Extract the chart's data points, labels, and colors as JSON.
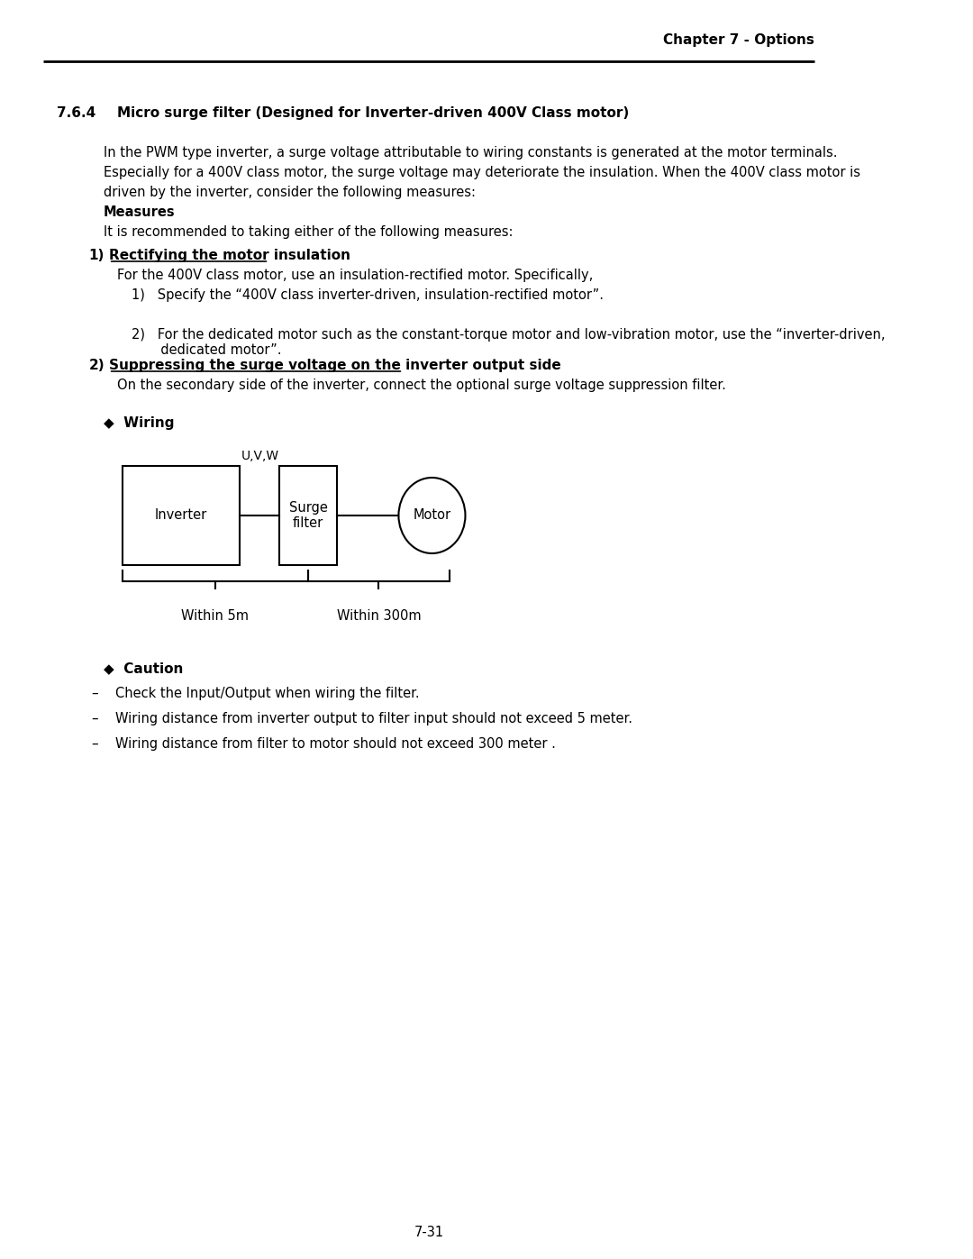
{
  "page_header": "Chapter 7 - Options",
  "section": "7.6.4",
  "section_title": "Micro surge filter (Designed for Inverter-driven 400V Class motor)",
  "body_text": [
    "In the PWM type inverter, a surge voltage attributable to wiring constants is generated at the motor terminals.",
    "Especially for a 400V class motor, the surge voltage may deteriorate the insulation. When the 400V class motor is",
    "driven by the inverter, consider the following measures:",
    "Measures",
    "It is recommended to taking either of the following measures:"
  ],
  "item1_label": "1)",
  "item1_title": "Rectifying the motor insulation",
  "item1_body": "For the 400V class motor, use an insulation-rectified motor. Specifically,",
  "item1_sub": [
    "1)   Specify the “400V class inverter-driven, insulation-rectified motor”.",
    "2)   For the dedicated motor such as the constant-torque motor and low-vibration motor, use the “inverter-driven,\n       dedicated motor”."
  ],
  "item2_label": "2)",
  "item2_title": "Suppressing the surge voltage on the inverter output side",
  "item2_body": "On the secondary side of the inverter, connect the optional surge voltage suppression filter.",
  "wiring_label": "Wiring",
  "inverter_label": "Inverter",
  "uvw_label": "U,V,W",
  "surge_label": "Surge\nfilter",
  "motor_label": "Motor",
  "within5m_label": "Within 5m",
  "within300m_label": "Within 300m",
  "caution_label": "Caution",
  "caution_items": [
    "Check the Input/Output when wiring the filter.",
    "Wiring distance from inverter output to filter input should not exceed 5 meter.",
    "Wiring distance from filter to motor should not exceed 300 meter ."
  ],
  "page_number": "7-31",
  "bg_color": "#ffffff",
  "text_color": "#000000",
  "line_color": "#000000"
}
